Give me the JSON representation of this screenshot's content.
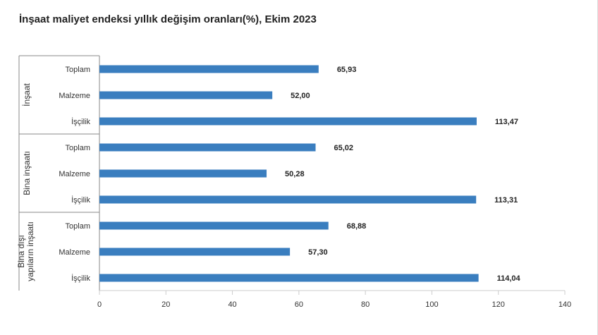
{
  "title": "İnşaat maliyet endeksi yıllık değişim oranları(%), Ekim 2023",
  "chart_data": {
    "type": "bar",
    "orientation": "horizontal",
    "title": "İnşaat maliyet endeksi yıllık değişim oranları(%), Ekim 2023",
    "xlim": [
      0,
      140
    ],
    "x_ticks": [
      "0",
      "20",
      "40",
      "60",
      "80",
      "100",
      "120",
      "140"
    ],
    "grid": false,
    "legend": "none",
    "bar_color": "#3a7ebf",
    "groups": [
      {
        "label": "İnşaat",
        "items": [
          {
            "label": "Toplam",
            "value": 65.93,
            "value_label": "65,93"
          },
          {
            "label": "Malzeme",
            "value": 52.0,
            "value_label": "52,00"
          },
          {
            "label": "İşçilik",
            "value": 113.47,
            "value_label": "113,47"
          }
        ]
      },
      {
        "label": "Bina inşaatı",
        "items": [
          {
            "label": "Toplam",
            "value": 65.02,
            "value_label": "65,02"
          },
          {
            "label": "Malzeme",
            "value": 50.28,
            "value_label": "50,28"
          },
          {
            "label": "İşçilik",
            "value": 113.31,
            "value_label": "113,31"
          }
        ]
      },
      {
        "label": [
          "Bina dışı",
          "yapıların inşaatı"
        ],
        "items": [
          {
            "label": "Toplam",
            "value": 68.88,
            "value_label": "68,88"
          },
          {
            "label": "Malzeme",
            "value": 57.3,
            "value_label": "57,30"
          },
          {
            "label": "İşçilik",
            "value": 114.04,
            "value_label": "114,04"
          }
        ]
      }
    ]
  }
}
